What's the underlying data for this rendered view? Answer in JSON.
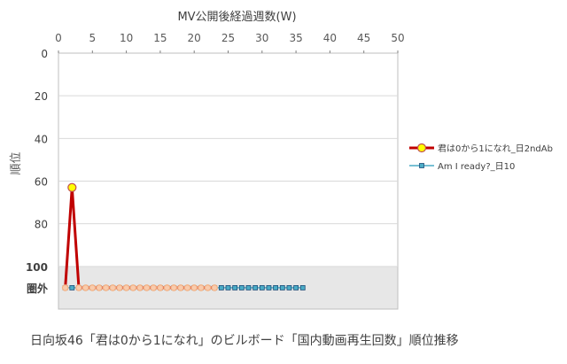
{
  "chart_data": {
    "type": "line",
    "xlabel": "MV公開後経過週数(W)",
    "ylabel": "順位",
    "xlim": [
      0,
      50
    ],
    "ylim": [
      0,
      120
    ],
    "x_ticks": [
      "0",
      "5",
      "10",
      "15",
      "20",
      "25",
      "30",
      "35",
      "40",
      "45",
      "50"
    ],
    "y_ticks": [
      "0",
      "20",
      "40",
      "60",
      "80",
      "100"
    ],
    "out_of_rank_label": "圏外",
    "out_of_rank_value": 110,
    "out_of_rank_band": [
      100,
      120
    ],
    "grid": true,
    "legend_position": "right",
    "series": [
      {
        "name": "君は0から1になれ_日2ndAb",
        "color": "#c00000",
        "marker_fill": "#ffff00",
        "marker_edge": "#c0504d",
        "marker": "circle",
        "x": [
          1,
          2,
          3,
          4,
          5,
          6,
          7,
          8,
          9,
          10,
          11,
          12,
          13,
          14,
          15,
          16,
          17,
          18,
          19,
          20,
          21,
          22,
          23
        ],
        "values": [
          110,
          63,
          110,
          110,
          110,
          110,
          110,
          110,
          110,
          110,
          110,
          110,
          110,
          110,
          110,
          110,
          110,
          110,
          110,
          110,
          110,
          110,
          110
        ]
      },
      {
        "name": "Am I ready?_日10",
        "color": "#4bacc6",
        "marker_fill": "#4bacc6",
        "marker_edge": "#1f4e79",
        "marker": "square",
        "x": [
          1,
          2,
          3,
          4,
          5,
          6,
          7,
          8,
          9,
          10,
          11,
          12,
          13,
          14,
          15,
          16,
          17,
          18,
          19,
          20,
          21,
          22,
          23,
          24,
          25,
          26,
          27,
          28,
          29,
          30,
          31,
          32,
          33,
          34,
          35,
          36
        ],
        "values": [
          110,
          110,
          110,
          110,
          110,
          110,
          110,
          110,
          110,
          110,
          110,
          110,
          110,
          110,
          110,
          110,
          110,
          110,
          110,
          110,
          110,
          110,
          110,
          110,
          110,
          110,
          110,
          110,
          110,
          110,
          110,
          110,
          110,
          110,
          110,
          110
        ]
      }
    ]
  },
  "caption": "日向坂46「君は0から1になれ」のビルボード「国内動画再生回数」順位推移"
}
